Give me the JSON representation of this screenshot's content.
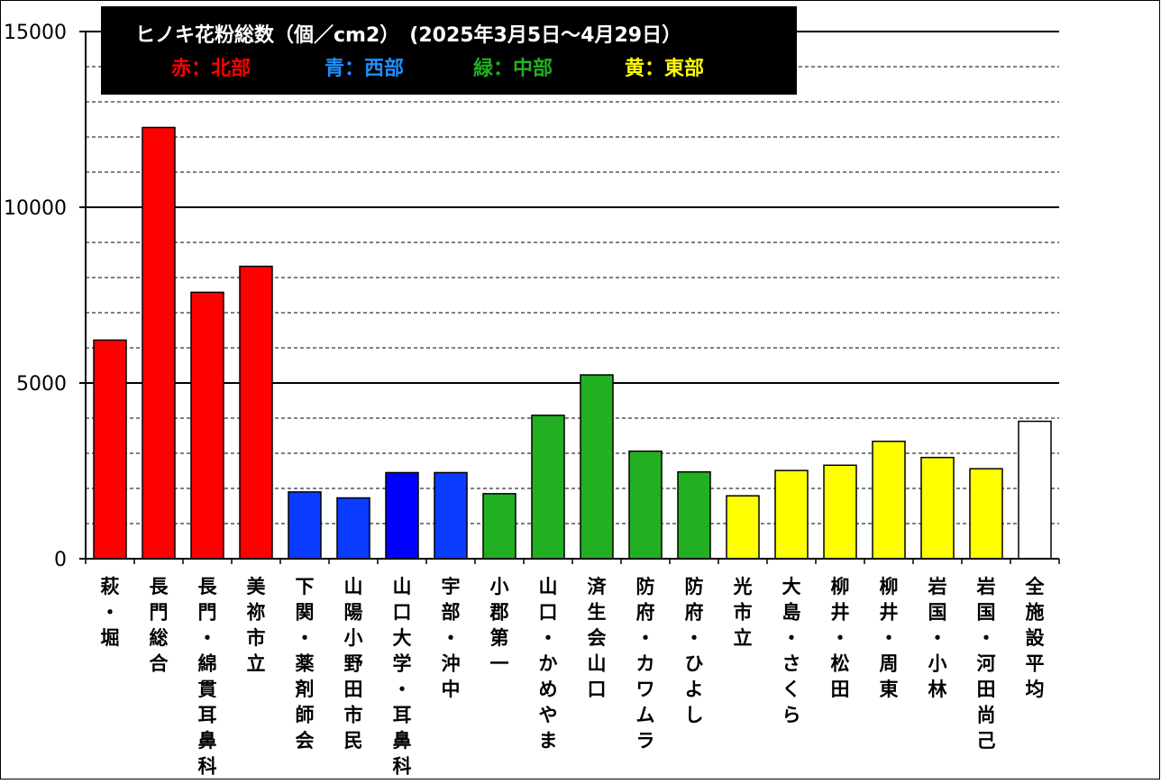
{
  "chart_data": {
    "type": "bar",
    "title": "ヒノキ花粉総数（個／cm2）　(2025年3月5日～4月29日）",
    "legend": [
      {
        "label": "赤：北部",
        "color": "#ff0000"
      },
      {
        "label": "青：西部",
        "color": "#1e90ff"
      },
      {
        "label": "緑：中部",
        "color": "#22b022"
      },
      {
        "label": "黄：東部",
        "color": "#ffff00"
      }
    ],
    "legend_placement": "top-left",
    "xlabel": "",
    "ylabel": "",
    "ylim": [
      0,
      15000
    ],
    "yticks": [
      0,
      5000,
      10000,
      15000
    ],
    "minor_grid_step": 1000,
    "grid": true,
    "categories": [
      "萩・堀",
      "長門総合",
      "長門・綿貫耳鼻科",
      "美祢市立",
      "下関・薬剤師会",
      "山陽小野田市民",
      "山口大学・耳鼻科",
      "宇部・沖中",
      "小郡第一",
      "山口・かめやま",
      "済生会山口",
      "防府・カワムラ",
      "防府・ひよし",
      "光市立",
      "大島・さくら",
      "柳井・松田",
      "柳井・周東",
      "岩国・小林",
      "岩国・河田尚己",
      "全施設平均"
    ],
    "values": [
      6220,
      12270,
      7580,
      8320,
      1900,
      1730,
      2450,
      2450,
      1850,
      4080,
      5230,
      3060,
      2470,
      1790,
      2510,
      2660,
      3340,
      2880,
      2560,
      3910
    ],
    "bar_colors": [
      "#ff0000",
      "#ff0000",
      "#ff0000",
      "#ff0000",
      "#0a3cff",
      "#0a3cff",
      "#0000ff",
      "#0a3cff",
      "#22b022",
      "#22b022",
      "#22b022",
      "#22b022",
      "#22b022",
      "#ffff00",
      "#ffff00",
      "#ffff00",
      "#ffff00",
      "#ffff00",
      "#ffff00",
      "#ffffff"
    ]
  }
}
